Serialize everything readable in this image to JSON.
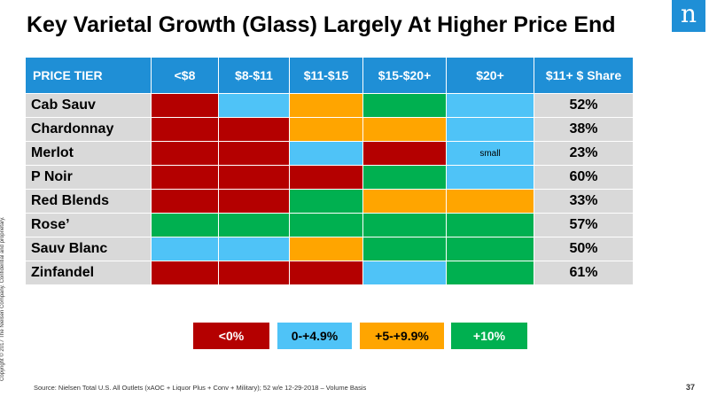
{
  "title": "Key Varietal Growth (Glass) Largely At Higher Price End",
  "logo_text": "n",
  "copyright": "Copyright © 2017 The Nielsen Company. Confidential and proprietary.",
  "colors": {
    "neg": "#b40000",
    "low": "#4fc3f7",
    "mid": "#ffa500",
    "high": "#00b050",
    "header": "#1f8fd6",
    "label_bg": "#d9d9d9"
  },
  "table": {
    "headers": [
      "PRICE TIER",
      "<$8",
      "$8-$11",
      "$11-$15",
      "$15-$20+",
      "$20+",
      "$11+ $ Share"
    ],
    "rows": [
      {
        "label": "Cab Sauv",
        "cells": [
          {
            "c": "neg",
            "t": ""
          },
          {
            "c": "low",
            "t": ""
          },
          {
            "c": "mid",
            "t": ""
          },
          {
            "c": "high",
            "t": ""
          },
          {
            "c": "low",
            "t": ""
          }
        ],
        "share": "52%"
      },
      {
        "label": "Chardonnay",
        "cells": [
          {
            "c": "neg",
            "t": ""
          },
          {
            "c": "neg",
            "t": ""
          },
          {
            "c": "mid",
            "t": ""
          },
          {
            "c": "mid",
            "t": ""
          },
          {
            "c": "low",
            "t": ""
          }
        ],
        "share": "38%"
      },
      {
        "label": "Merlot",
        "cells": [
          {
            "c": "neg",
            "t": ""
          },
          {
            "c": "neg",
            "t": ""
          },
          {
            "c": "low",
            "t": ""
          },
          {
            "c": "neg",
            "t": ""
          },
          {
            "c": "low",
            "t": "small"
          }
        ],
        "share": "23%"
      },
      {
        "label": "P Noir",
        "cells": [
          {
            "c": "neg",
            "t": ""
          },
          {
            "c": "neg",
            "t": ""
          },
          {
            "c": "neg",
            "t": ""
          },
          {
            "c": "high",
            "t": ""
          },
          {
            "c": "low",
            "t": ""
          }
        ],
        "share": "60%"
      },
      {
        "label": "Red Blends",
        "cells": [
          {
            "c": "neg",
            "t": ""
          },
          {
            "c": "neg",
            "t": ""
          },
          {
            "c": "high",
            "t": ""
          },
          {
            "c": "mid",
            "t": ""
          },
          {
            "c": "mid",
            "t": ""
          }
        ],
        "share": "33%"
      },
      {
        "label": "Rose’",
        "cells": [
          {
            "c": "high",
            "t": ""
          },
          {
            "c": "high",
            "t": ""
          },
          {
            "c": "high",
            "t": ""
          },
          {
            "c": "high",
            "t": ""
          },
          {
            "c": "high",
            "t": ""
          }
        ],
        "share": "57%"
      },
      {
        "label": "Sauv Blanc",
        "cells": [
          {
            "c": "low",
            "t": ""
          },
          {
            "c": "low",
            "t": ""
          },
          {
            "c": "mid",
            "t": ""
          },
          {
            "c": "high",
            "t": ""
          },
          {
            "c": "high",
            "t": ""
          }
        ],
        "share": "50%"
      },
      {
        "label": "Zinfandel",
        "cells": [
          {
            "c": "neg",
            "t": ""
          },
          {
            "c": "neg",
            "t": ""
          },
          {
            "c": "neg",
            "t": ""
          },
          {
            "c": "low",
            "t": ""
          },
          {
            "c": "high",
            "t": ""
          }
        ],
        "share": "61%"
      }
    ]
  },
  "legend": [
    {
      "key": "neg",
      "label": "<0%",
      "text_color": "#ffffff"
    },
    {
      "key": "low",
      "label": "0-+4.9%",
      "text_color": "#000000"
    },
    {
      "key": "mid",
      "label": "+5-+9.9%",
      "text_color": "#000000"
    },
    {
      "key": "high",
      "label": "+10%",
      "text_color": "#ffffff"
    }
  ],
  "source": "Source:  Nielsen Total U.S. All Outlets (xAOC + Liquor Plus + Conv + Military); 52 w/e 12-29-2018 – Volume Basis",
  "page_number": "37"
}
